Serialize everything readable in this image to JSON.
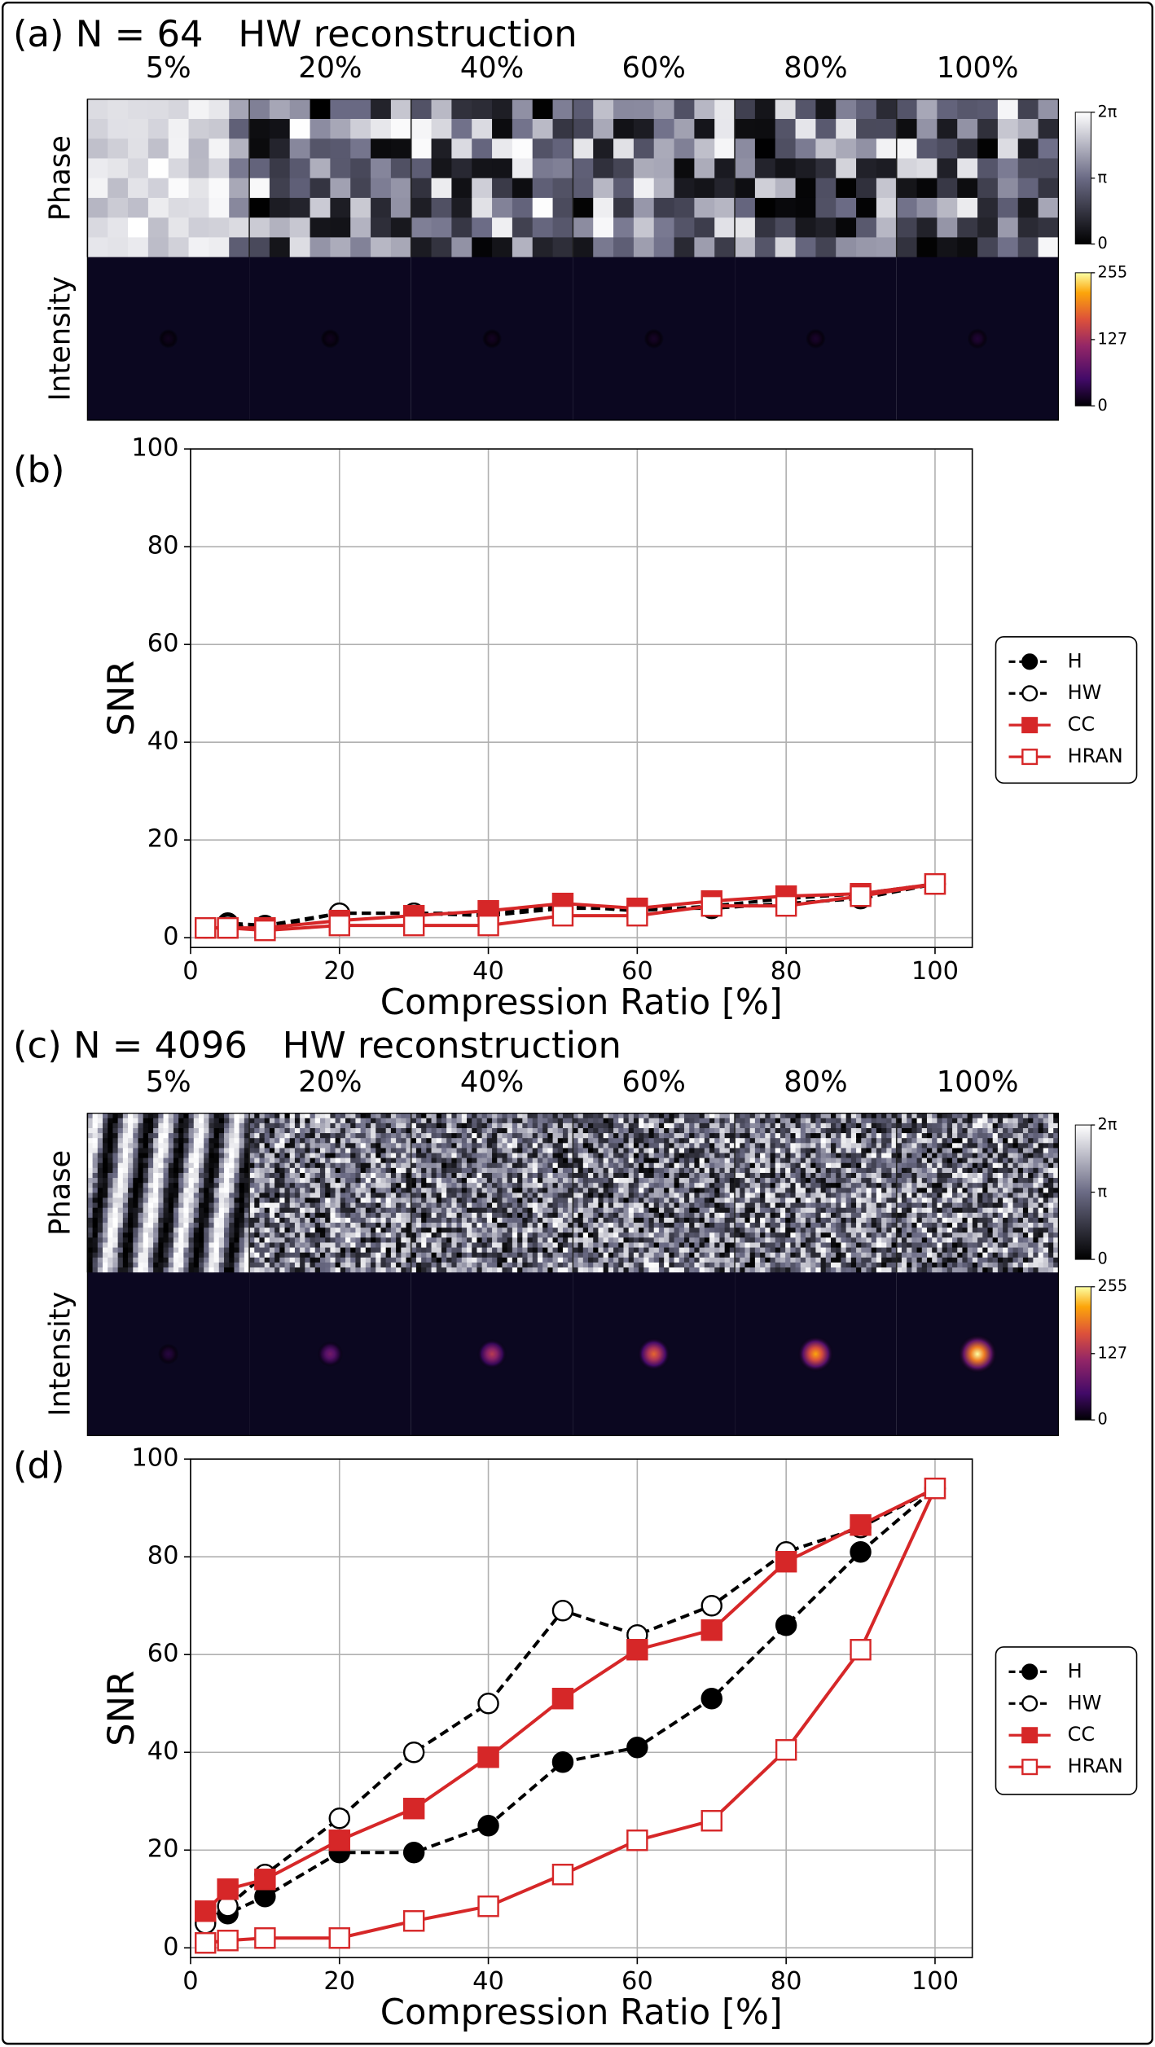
{
  "chart_data": [
    {
      "type": "image-grid",
      "title": "(a) N = 64   HW reconstruction",
      "columns": [
        "5%",
        "20%",
        "40%",
        "60%",
        "80%",
        "100%"
      ],
      "rows": [
        "Phase",
        "Intensity"
      ],
      "phase_colorbar": {
        "lim": [
          0,
          6.2832
        ],
        "ticks": [
          0,
          {
            "value": 3.1416,
            "label": "π"
          },
          {
            "value": 6.2832,
            "label": "2π"
          }
        ]
      },
      "intensity_colorbar": {
        "lim": [
          0,
          255
        ],
        "ticks": [
          0,
          127,
          255
        ]
      }
    },
    {
      "type": "line",
      "label": "(b)",
      "xlabel": "Compression Ratio [%]",
      "ylabel": "SNR",
      "x": [
        2,
        5,
        10,
        20,
        30,
        40,
        50,
        60,
        70,
        80,
        90,
        100
      ],
      "xlim": [
        0,
        105
      ],
      "ylim": [
        -2,
        100
      ],
      "xticks": [
        0,
        20,
        40,
        60,
        80,
        100
      ],
      "yticks": [
        0,
        20,
        40,
        60,
        80,
        100
      ],
      "grid": true,
      "legend": "outside right",
      "series": [
        {
          "name": "H",
          "color": "#000000",
          "marker": "circle",
          "filled": true,
          "linestyle": "dashed",
          "values": [
            2,
            3,
            2.5,
            5,
            5,
            4.5,
            6,
            6,
            6,
            7,
            8,
            11
          ]
        },
        {
          "name": "HW",
          "color": "#000000",
          "marker": "circle",
          "filled": false,
          "linestyle": "dashed",
          "values": [
            2,
            2.5,
            2,
            5,
            5,
            5,
            6.5,
            5.5,
            6.5,
            8,
            9,
            11
          ]
        },
        {
          "name": "CC",
          "color": "#d62728",
          "marker": "square",
          "filled": true,
          "linestyle": "solid",
          "values": [
            2,
            2,
            2,
            3.5,
            4.5,
            5.5,
            7,
            6,
            7.5,
            8.5,
            9,
            11
          ]
        },
        {
          "name": "HRAN",
          "color": "#d62728",
          "marker": "square",
          "filled": false,
          "linestyle": "solid",
          "values": [
            2,
            2,
            1.5,
            2.5,
            2.5,
            2.5,
            4.5,
            4.5,
            6.5,
            6.5,
            8.5,
            11
          ]
        }
      ]
    },
    {
      "type": "image-grid",
      "title": "(c) N = 4096   HW reconstruction",
      "columns": [
        "5%",
        "20%",
        "40%",
        "60%",
        "80%",
        "100%"
      ],
      "rows": [
        "Phase",
        "Intensity"
      ],
      "phase_colorbar": {
        "lim": [
          0,
          6.2832
        ],
        "ticks": [
          0,
          {
            "value": 3.1416,
            "label": "π"
          },
          {
            "value": 6.2832,
            "label": "2π"
          }
        ]
      },
      "intensity_colorbar": {
        "lim": [
          0,
          255
        ],
        "ticks": [
          0,
          127,
          255
        ]
      }
    },
    {
      "type": "line",
      "label": "(d)",
      "xlabel": "Compression Ratio [%]",
      "ylabel": "SNR",
      "x": [
        2,
        5,
        10,
        20,
        30,
        40,
        50,
        60,
        70,
        80,
        90,
        100
      ],
      "xlim": [
        0,
        105
      ],
      "ylim": [
        -2,
        100
      ],
      "xticks": [
        0,
        20,
        40,
        60,
        80,
        100
      ],
      "yticks": [
        0,
        20,
        40,
        60,
        80,
        100
      ],
      "grid": true,
      "legend": "outside right",
      "series": [
        {
          "name": "H",
          "color": "#000000",
          "marker": "circle",
          "filled": true,
          "linestyle": "dashed",
          "values": [
            5.5,
            7,
            10.5,
            19.5,
            19.5,
            25,
            38,
            41,
            51,
            66,
            81,
            94
          ]
        },
        {
          "name": "HW",
          "color": "#000000",
          "marker": "circle",
          "filled": false,
          "linestyle": "dashed",
          "values": [
            5,
            8.5,
            15,
            26.5,
            40,
            50,
            69,
            64,
            70,
            81,
            86,
            94
          ]
        },
        {
          "name": "CC",
          "color": "#d62728",
          "marker": "square",
          "filled": true,
          "linestyle": "solid",
          "values": [
            7.5,
            12,
            14,
            22,
            28.5,
            39,
            51,
            61,
            65,
            79,
            86.5,
            94
          ]
        },
        {
          "name": "HRAN",
          "color": "#d62728",
          "marker": "square",
          "filled": false,
          "linestyle": "solid",
          "values": [
            1,
            1.5,
            2,
            2,
            5.5,
            8.5,
            15,
            22,
            26,
            40.5,
            61,
            94
          ]
        }
      ]
    }
  ]
}
